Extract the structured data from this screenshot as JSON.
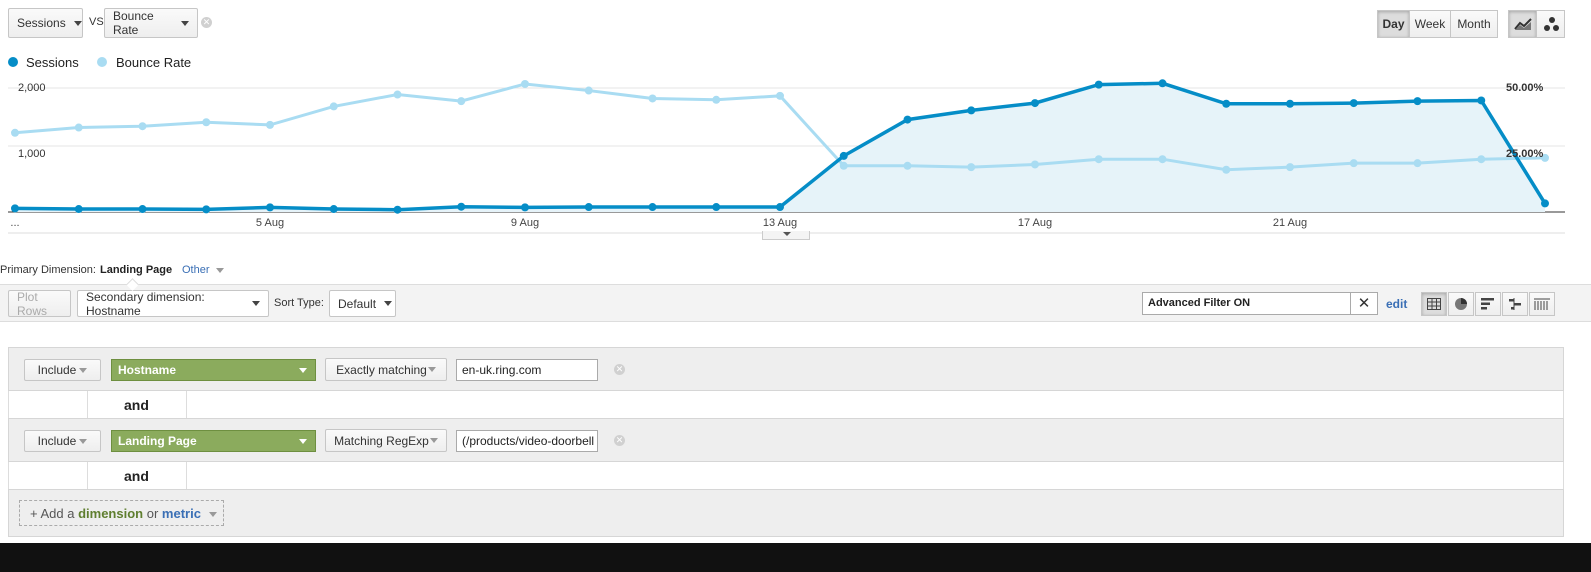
{
  "metric_selector": {
    "primary_metric": "Sessions",
    "vs_label": "VS",
    "compare_metric": "Bounce Rate"
  },
  "period_buttons": {
    "day": "Day",
    "week": "Week",
    "month": "Month",
    "active": "Day"
  },
  "chart_type_buttons": [
    "line-chart-icon",
    "motion-chart-icon"
  ],
  "legend": {
    "sessions": "Sessions",
    "bounce_rate": "Bounce Rate"
  },
  "colors": {
    "sessions": "#058dc7",
    "bounce_rate": "#a9dcf2",
    "area_fill": "#e6f3f9",
    "green_dimension": "#8bab5d",
    "link_blue": "#3a6fb5",
    "footer_bar": "#111111"
  },
  "chart_data": {
    "type": "line",
    "x": [
      "Jul 31",
      "Aug 1",
      "Aug 2",
      "Aug 3",
      "Aug 4",
      "Aug 5",
      "Aug 6",
      "Aug 7",
      "Aug 8",
      "Aug 9",
      "Aug 10",
      "Aug 11",
      "Aug 12",
      "Aug 13",
      "Aug 14",
      "Aug 15",
      "Aug 16",
      "Aug 17",
      "Aug 18",
      "Aug 19",
      "Aug 20",
      "Aug 21",
      "Aug 22",
      "Aug 23",
      "Aug 24"
    ],
    "x_tick_labels": [
      "...",
      "5 Aug",
      "9 Aug",
      "13 Aug",
      "17 Aug",
      "21 Aug"
    ],
    "x_tick_indices": [
      0,
      4,
      8,
      12,
      16,
      20
    ],
    "series": [
      {
        "name": "Sessions",
        "axis": "left",
        "values": [
          55,
          45,
          45,
          40,
          70,
          45,
          35,
          80,
          70,
          75,
          75,
          75,
          75,
          850,
          1400,
          1540,
          1650,
          1930,
          1950,
          1640,
          1640,
          1650,
          1680,
          1690,
          130
        ]
      },
      {
        "name": "Bounce Rate",
        "axis": "right",
        "values": [
          30.0,
          32.0,
          32.5,
          34.0,
          33.0,
          40.0,
          44.5,
          42.0,
          48.5,
          46.0,
          43.0,
          42.5,
          44.0,
          17.5,
          17.5,
          17.0,
          18.0,
          20.0,
          20.0,
          16.0,
          17.0,
          18.5,
          18.5,
          20.0,
          20.5
        ]
      }
    ],
    "y_left": {
      "ticks": [
        1000,
        2000
      ],
      "tick_labels": [
        "1,000",
        "2,000"
      ],
      "range": [
        0,
        2000
      ]
    },
    "y_right": {
      "ticks": [
        25,
        50
      ],
      "tick_labels": [
        "25.00%",
        "50.00%"
      ],
      "range": [
        0,
        50
      ]
    },
    "area_under": "Sessions",
    "grid": true
  },
  "primary_dimension": {
    "label": "Primary Dimension:",
    "value": "Landing Page",
    "other": "Other"
  },
  "table_toolbar": {
    "plot_rows": "Plot Rows",
    "secondary_dimension": "Secondary dimension: Hostname",
    "sort_type_label": "Sort Type:",
    "sort_type_value": "Default",
    "filter_value": "Advanced Filter ON",
    "edit": "edit",
    "view_icons": [
      "table-view-icon",
      "pie-view-icon",
      "bar-view-icon",
      "comparison-view-icon",
      "pivot-view-icon"
    ]
  },
  "filters": [
    {
      "include": "Include",
      "dimension": "Hostname",
      "match_type": "Exactly matching",
      "value": "en-uk.ring.com"
    },
    {
      "include": "Include",
      "dimension": "Landing Page",
      "match_type": "Matching RegExp",
      "value": "(/products/video-doorbell"
    }
  ],
  "and_label": "and",
  "add_row": {
    "prefix": "+ Add a",
    "dimension": "dimension",
    "or": "or",
    "metric": "metric"
  }
}
